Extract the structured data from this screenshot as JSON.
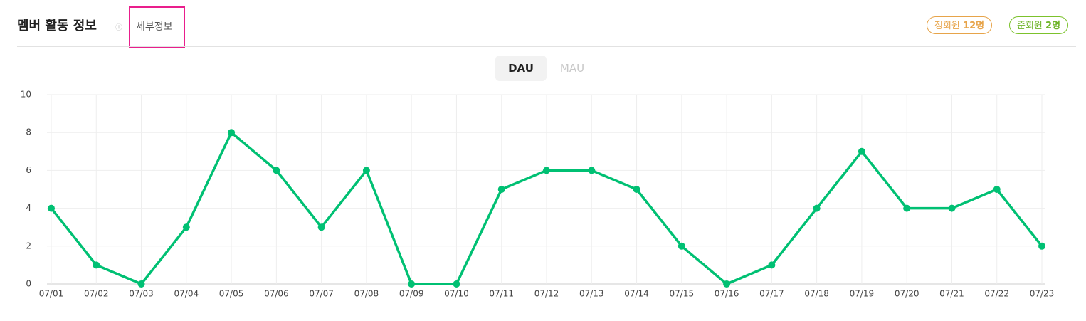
{
  "header": {
    "title": "멤버 활동 정보",
    "link": "세부정보",
    "badges": [
      {
        "label": "정회원",
        "count": "12명"
      },
      {
        "label": "준회원",
        "count": "2명"
      }
    ]
  },
  "tabs": [
    "DAU",
    "MAU"
  ],
  "chart_data": {
    "type": "line",
    "categories": [
      "07/01",
      "07/02",
      "07/03",
      "07/04",
      "07/05",
      "07/06",
      "07/07",
      "07/08",
      "07/09",
      "07/10",
      "07/11",
      "07/12",
      "07/13",
      "07/14",
      "07/15",
      "07/16",
      "07/17",
      "07/18",
      "07/19",
      "07/20",
      "07/21",
      "07/22",
      "07/23"
    ],
    "series": [
      {
        "name": "DAU",
        "color": "#00c073",
        "values": [
          4,
          1,
          0,
          3,
          8,
          6,
          3,
          6,
          0,
          0,
          5,
          6,
          6,
          5,
          2,
          0,
          1,
          4,
          7,
          4,
          4,
          5,
          2
        ]
      }
    ],
    "ylim": [
      0,
      10
    ],
    "yticks": [
      0,
      2,
      4,
      6,
      8,
      10
    ],
    "grid": true
  }
}
